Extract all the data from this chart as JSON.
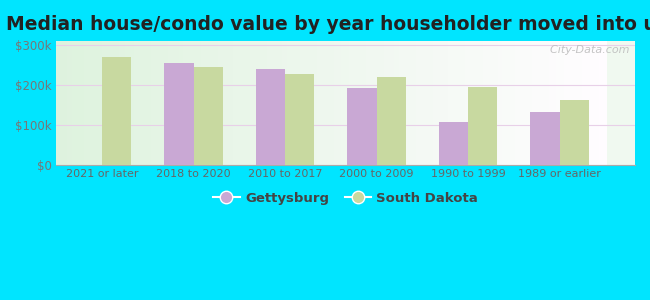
{
  "title": "Median house/condo value by year householder moved into unit",
  "categories": [
    "2021 or later",
    "2018 to 2020",
    "2010 to 2017",
    "2000 to 2009",
    "1990 to 1999",
    "1989 or earlier"
  ],
  "gettysburg": [
    null,
    255000,
    240000,
    193000,
    108000,
    133000
  ],
  "south_dakota": [
    270000,
    245000,
    228000,
    220000,
    195000,
    162000
  ],
  "gettysburg_color": "#c9a8d4",
  "south_dakota_color": "#c8d9a0",
  "background_outer": "#00e5ff",
  "background_inner": "#e8f5e9",
  "grid_color": "#e8d0e8",
  "ylim": [
    0,
    310000
  ],
  "ytick_labels": [
    "$0",
    "$100k",
    "$200k",
    "$300k"
  ],
  "ytick_values": [
    0,
    100000,
    200000,
    300000
  ],
  "legend_gettysburg": "Gettysburg",
  "legend_south_dakota": "South Dakota",
  "bar_width": 0.32,
  "title_fontsize": 13.5,
  "watermark": "  City-Data.com"
}
